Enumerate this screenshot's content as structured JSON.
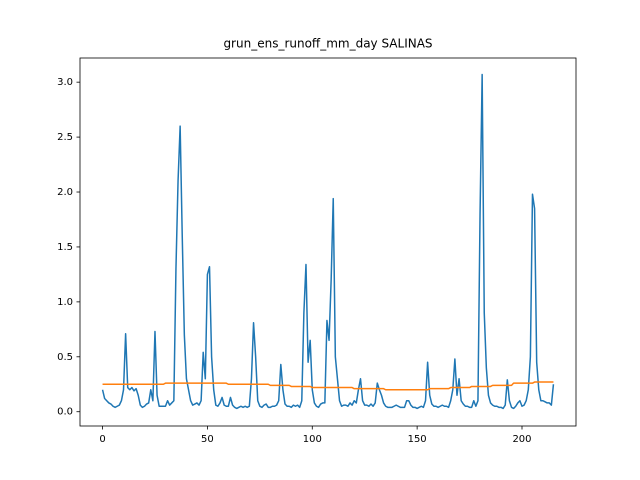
{
  "chart_data": {
    "type": "line",
    "title": "grun_ens_runoff_mm_day SALINAS",
    "x": [
      0,
      1,
      2,
      3,
      4,
      5,
      6,
      7,
      8,
      9,
      10,
      11,
      12,
      13,
      14,
      15,
      16,
      17,
      18,
      19,
      20,
      21,
      22,
      23,
      24,
      25,
      26,
      27,
      28,
      29,
      30,
      31,
      32,
      33,
      34,
      35,
      36,
      37,
      38,
      39,
      40,
      41,
      42,
      43,
      44,
      45,
      46,
      47,
      48,
      49,
      50,
      51,
      52,
      53,
      54,
      55,
      56,
      57,
      58,
      59,
      60,
      61,
      62,
      63,
      64,
      65,
      66,
      67,
      68,
      69,
      70,
      71,
      72,
      73,
      74,
      75,
      76,
      77,
      78,
      79,
      80,
      81,
      82,
      83,
      84,
      85,
      86,
      87,
      88,
      89,
      90,
      91,
      92,
      93,
      94,
      95,
      96,
      97,
      98,
      99,
      100,
      101,
      102,
      103,
      104,
      105,
      106,
      107,
      108,
      109,
      110,
      111,
      112,
      113,
      114,
      115,
      116,
      117,
      118,
      119,
      120,
      121,
      122,
      123,
      124,
      125,
      126,
      127,
      128,
      129,
      130,
      131,
      132,
      133,
      134,
      135,
      136,
      137,
      138,
      139,
      140,
      141,
      142,
      143,
      144,
      145,
      146,
      147,
      148,
      149,
      150,
      151,
      152,
      153,
      154,
      155,
      156,
      157,
      158,
      159,
      160,
      161,
      162,
      163,
      164,
      165,
      166,
      167,
      168,
      169,
      170,
      171,
      172,
      173,
      174,
      175,
      176,
      177,
      178,
      179,
      180,
      181,
      182,
      183,
      184,
      185,
      186,
      187,
      188,
      189,
      190,
      191,
      192,
      193,
      194,
      195,
      196,
      197,
      198,
      199,
      200,
      201,
      202,
      203,
      204,
      205,
      206,
      207,
      208,
      209,
      210,
      211,
      212,
      213,
      214,
      215
    ],
    "series": [
      {
        "color": "#1f77b4",
        "values": [
          0.2,
          0.12,
          0.1,
          0.08,
          0.07,
          0.05,
          0.04,
          0.05,
          0.06,
          0.1,
          0.2,
          0.71,
          0.22,
          0.2,
          0.22,
          0.19,
          0.21,
          0.15,
          0.06,
          0.04,
          0.05,
          0.07,
          0.08,
          0.2,
          0.1,
          0.73,
          0.15,
          0.05,
          0.05,
          0.05,
          0.05,
          0.1,
          0.06,
          0.08,
          0.1,
          1.3,
          2.1,
          2.6,
          1.6,
          0.7,
          0.3,
          0.2,
          0.1,
          0.06,
          0.07,
          0.08,
          0.06,
          0.1,
          0.54,
          0.3,
          1.25,
          1.32,
          0.5,
          0.2,
          0.06,
          0.05,
          0.08,
          0.13,
          0.06,
          0.05,
          0.05,
          0.13,
          0.06,
          0.04,
          0.03,
          0.04,
          0.05,
          0.04,
          0.05,
          0.04,
          0.05,
          0.3,
          0.81,
          0.5,
          0.1,
          0.05,
          0.04,
          0.06,
          0.07,
          0.04,
          0.04,
          0.05,
          0.05,
          0.06,
          0.1,
          0.43,
          0.2,
          0.07,
          0.05,
          0.05,
          0.04,
          0.06,
          0.05,
          0.06,
          0.04,
          0.1,
          0.9,
          1.34,
          0.45,
          0.65,
          0.2,
          0.08,
          0.05,
          0.04,
          0.07,
          0.08,
          0.08,
          0.83,
          0.65,
          1.2,
          1.94,
          0.5,
          0.3,
          0.1,
          0.05,
          0.06,
          0.06,
          0.05,
          0.08,
          0.06,
          0.1,
          0.08,
          0.2,
          0.3,
          0.1,
          0.06,
          0.06,
          0.05,
          0.07,
          0.05,
          0.08,
          0.26,
          0.2,
          0.15,
          0.08,
          0.05,
          0.04,
          0.04,
          0.04,
          0.05,
          0.06,
          0.05,
          0.04,
          0.04,
          0.04,
          0.1,
          0.1,
          0.06,
          0.04,
          0.04,
          0.03,
          0.04,
          0.05,
          0.04,
          0.1,
          0.45,
          0.15,
          0.07,
          0.05,
          0.05,
          0.04,
          0.05,
          0.06,
          0.05,
          0.05,
          0.04,
          0.1,
          0.2,
          0.48,
          0.15,
          0.3,
          0.1,
          0.07,
          0.05,
          0.05,
          0.04,
          0.04,
          0.1,
          0.05,
          0.1,
          1.8,
          3.07,
          0.9,
          0.4,
          0.15,
          0.08,
          0.06,
          0.05,
          0.05,
          0.04,
          0.04,
          0.03,
          0.06,
          0.29,
          0.1,
          0.04,
          0.03,
          0.05,
          0.08,
          0.1,
          0.05,
          0.06,
          0.1,
          0.2,
          0.5,
          1.98,
          1.85,
          0.45,
          0.2,
          0.1,
          0.1,
          0.09,
          0.08,
          0.08,
          0.06,
          0.25
        ]
      },
      {
        "color": "#ff7f0e",
        "values": [
          0.25,
          0.25,
          0.25,
          0.25,
          0.25,
          0.25,
          0.25,
          0.25,
          0.25,
          0.25,
          0.25,
          0.25,
          0.25,
          0.25,
          0.25,
          0.25,
          0.25,
          0.25,
          0.25,
          0.25,
          0.25,
          0.25,
          0.25,
          0.25,
          0.25,
          0.25,
          0.25,
          0.25,
          0.25,
          0.25,
          0.26,
          0.26,
          0.26,
          0.26,
          0.26,
          0.26,
          0.26,
          0.26,
          0.26,
          0.26,
          0.26,
          0.26,
          0.26,
          0.26,
          0.26,
          0.26,
          0.26,
          0.26,
          0.26,
          0.26,
          0.26,
          0.26,
          0.26,
          0.26,
          0.26,
          0.26,
          0.26,
          0.26,
          0.26,
          0.26,
          0.25,
          0.25,
          0.25,
          0.25,
          0.25,
          0.25,
          0.25,
          0.25,
          0.25,
          0.25,
          0.25,
          0.25,
          0.25,
          0.25,
          0.25,
          0.25,
          0.25,
          0.25,
          0.25,
          0.25,
          0.24,
          0.24,
          0.24,
          0.24,
          0.24,
          0.24,
          0.24,
          0.24,
          0.24,
          0.24,
          0.23,
          0.23,
          0.23,
          0.23,
          0.23,
          0.23,
          0.23,
          0.23,
          0.23,
          0.23,
          0.22,
          0.22,
          0.22,
          0.22,
          0.22,
          0.22,
          0.22,
          0.22,
          0.22,
          0.22,
          0.22,
          0.22,
          0.22,
          0.22,
          0.22,
          0.22,
          0.22,
          0.22,
          0.22,
          0.22,
          0.21,
          0.21,
          0.21,
          0.21,
          0.21,
          0.21,
          0.21,
          0.21,
          0.21,
          0.21,
          0.21,
          0.21,
          0.21,
          0.21,
          0.21,
          0.2,
          0.2,
          0.2,
          0.2,
          0.2,
          0.2,
          0.2,
          0.2,
          0.2,
          0.2,
          0.2,
          0.2,
          0.2,
          0.2,
          0.2,
          0.2,
          0.2,
          0.2,
          0.2,
          0.2,
          0.2,
          0.21,
          0.21,
          0.21,
          0.21,
          0.21,
          0.21,
          0.21,
          0.21,
          0.21,
          0.21,
          0.22,
          0.22,
          0.22,
          0.22,
          0.22,
          0.22,
          0.22,
          0.22,
          0.22,
          0.22,
          0.23,
          0.23,
          0.23,
          0.23,
          0.23,
          0.23,
          0.23,
          0.23,
          0.23,
          0.23,
          0.24,
          0.24,
          0.24,
          0.24,
          0.24,
          0.24,
          0.24,
          0.24,
          0.24,
          0.24,
          0.26,
          0.26,
          0.26,
          0.26,
          0.26,
          0.26,
          0.26,
          0.26,
          0.26,
          0.26,
          0.27,
          0.27,
          0.27,
          0.27,
          0.27,
          0.27,
          0.27,
          0.27,
          0.27,
          0.27
        ]
      }
    ],
    "xlim": [
      -10.75,
      225.75
    ],
    "xticks": [
      0,
      50,
      100,
      150,
      200
    ],
    "ylim": [
      -0.13,
      3.22
    ],
    "yticks": [
      {
        "value": 0,
        "label": "0.0"
      },
      0.5,
      {
        "value": 1,
        "label": "1.0"
      },
      1.5,
      {
        "value": 2,
        "label": "2.0"
      },
      2.5,
      {
        "value": 3,
        "label": "3.0"
      }
    ]
  }
}
